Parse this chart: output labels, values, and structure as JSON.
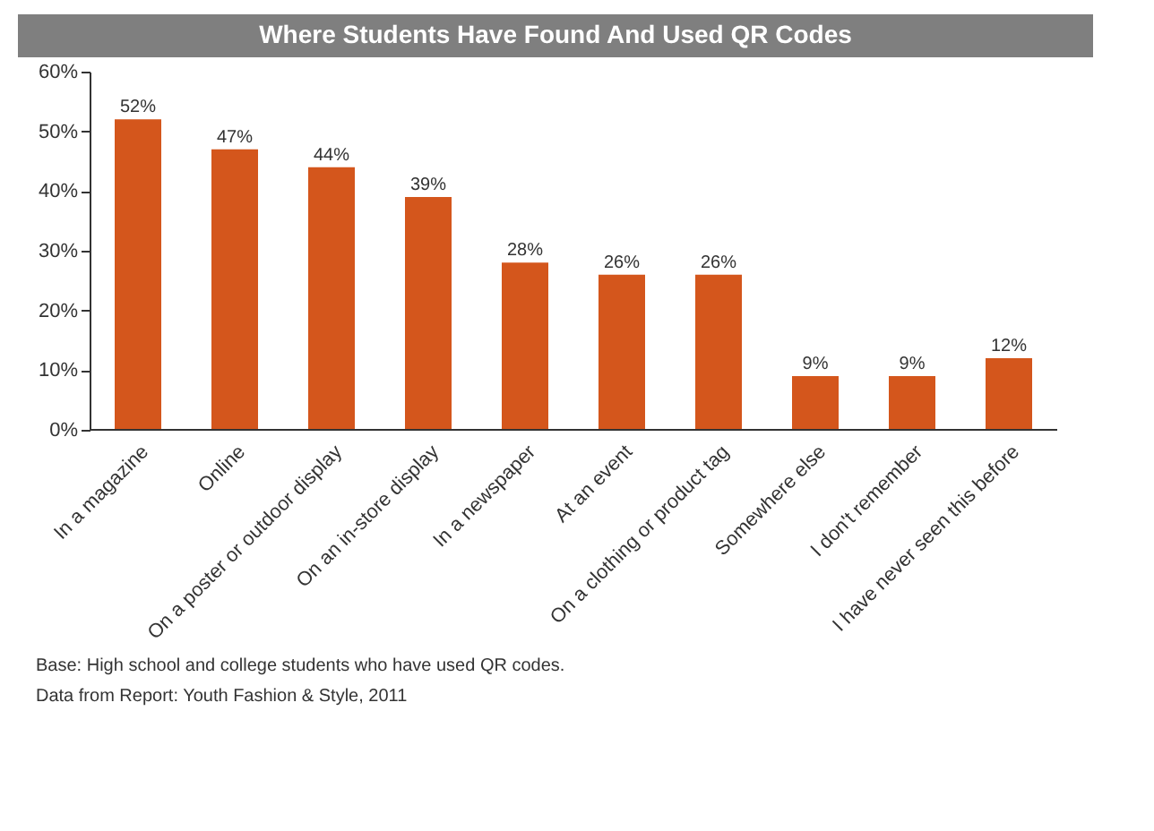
{
  "chart_data": {
    "type": "bar",
    "title": "Where Students Have Found And Used QR Codes",
    "categories": [
      "In a magazine",
      "Online",
      "On a poster or outdoor display",
      "On an in-store display",
      "In a newspaper",
      "At an event",
      "On a clothing or product tag",
      "Somewhere else",
      "I don't remember",
      "I have never seen this before"
    ],
    "values": [
      52,
      47,
      44,
      39,
      28,
      26,
      26,
      9,
      9,
      12
    ],
    "value_labels": [
      "52%",
      "47%",
      "44%",
      "39%",
      "28%",
      "26%",
      "26%",
      "9%",
      "9%",
      "12%"
    ],
    "color": "#d4561c",
    "ylim": [
      0,
      60
    ],
    "yticks": [
      {
        "value": 0,
        "label": "0%"
      },
      {
        "value": 10,
        "label": "10%"
      },
      {
        "value": 20,
        "label": "20%"
      },
      {
        "value": 30,
        "label": "30%"
      },
      {
        "value": 40,
        "label": "40%"
      },
      {
        "value": 50,
        "label": "50%"
      },
      {
        "value": 60,
        "label": "60%"
      }
    ],
    "grid": false,
    "annotations": [
      "Base: High school and college students who have used QR codes.",
      "Data from Report: Youth Fashion & Style, 2011"
    ]
  }
}
